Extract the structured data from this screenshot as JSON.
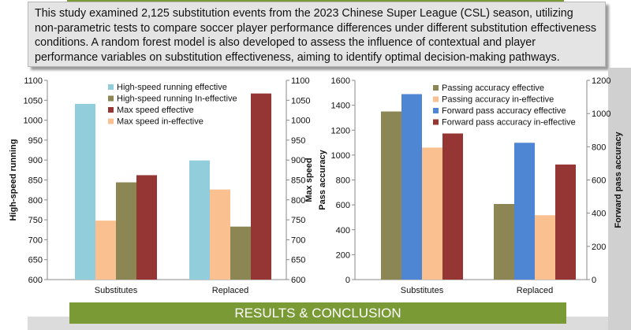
{
  "abstract": {
    "text": "This study examined 2,125 substitution events from the 2023 Chinese Super League (CSL) season, utilizing non-parametric tests to compare soccer player performance differences under different substitution effectiveness conditions. A random forest model is also developed to assess the influence of contextual and player performance variables on substitution effectiveness, aiming to identify optimal decision-making pathways."
  },
  "section_heading": "RESULTS & CONCLUSION",
  "chart_data": [
    {
      "type": "bar",
      "categories": [
        "Substitutes",
        "Replaced"
      ],
      "ylabel": "High-speed running",
      "y2label": "Max speed",
      "ylim": [
        600,
        1100
      ],
      "y2lim": [
        600,
        1100
      ],
      "yticks": [
        "600",
        "650",
        "700",
        "750",
        "800",
        "850",
        "900",
        "950",
        "1000",
        "1050",
        "1100"
      ],
      "y2ticks": [
        "600",
        "650",
        "700",
        "750",
        "800",
        "850",
        "900",
        "950",
        "1000",
        "1050",
        "1100"
      ],
      "legend_position": "top-left",
      "series": [
        {
          "name": "High-speed running effective",
          "axis": "left",
          "color": "#92cddc",
          "values": [
            1041,
            899
          ]
        },
        {
          "name": "High-speed running In-effective",
          "axis": "left",
          "color": "#8b8653",
          "values": [
            844,
            733
          ]
        },
        {
          "name": "Max speed effective",
          "axis": "right",
          "color": "#963634",
          "values": [
            862,
            1067
          ]
        },
        {
          "name": "Max speed in-effective",
          "axis": "right",
          "color": "#fac090",
          "values": [
            748,
            826
          ]
        }
      ]
    },
    {
      "type": "bar",
      "categories": [
        "Substitutes",
        "Replaced"
      ],
      "ylabel": "Pass accuracy",
      "y2label": "Forward pass accuracy",
      "ylim": [
        0,
        1600
      ],
      "y2lim": [
        0,
        1200
      ],
      "yticks": [
        "0",
        "200",
        "400",
        "600",
        "800",
        "1000",
        "1200",
        "1400",
        "1600"
      ],
      "y2ticks": [
        "0",
        "200",
        "400",
        "600",
        "800",
        "1000",
        "1200"
      ],
      "legend_position": "top-right",
      "series": [
        {
          "name": "Passing accuracy effective",
          "axis": "left",
          "color": "#8b8653",
          "values": [
            1350,
            607
          ]
        },
        {
          "name": "Passing accuracy in-effective",
          "axis": "left",
          "color": "#fac090",
          "values": [
            1060,
            517
          ]
        },
        {
          "name": "Forward pass accuracy effective",
          "axis": "right",
          "color": "#4f86d4",
          "values": [
            1117,
            824
          ]
        },
        {
          "name": "Forward pass accuracy in-effective",
          "axis": "right",
          "color": "#963634",
          "values": [
            880,
            693
          ]
        }
      ]
    }
  ]
}
